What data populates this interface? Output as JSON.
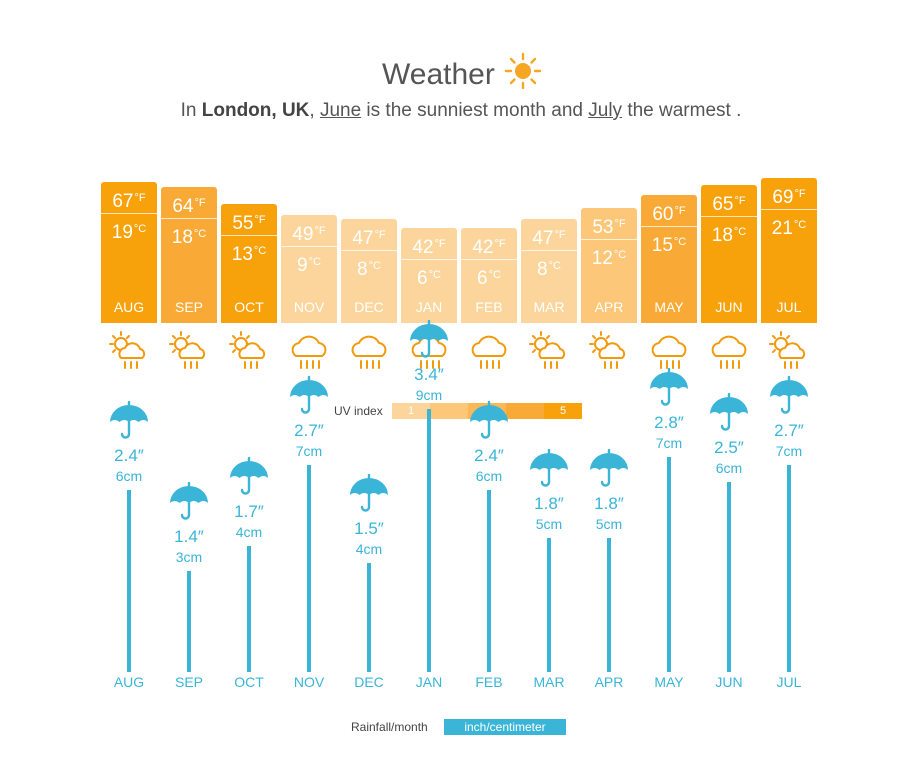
{
  "title": "Weather",
  "subtitle": {
    "prefix": "In ",
    "location": "London, UK",
    "comma": ", ",
    "sunniest_month": "June",
    "middle": " is the sunniest month and ",
    "warmest_month": "July",
    "suffix": " the warmest ."
  },
  "colors": {
    "temp_bar_levels": [
      "#fcd59c",
      "#fcc779",
      "#fbb855",
      "#f9a935",
      "#f7a10b"
    ],
    "uv_levels": [
      "#fcd59c",
      "#fcc779",
      "#fbb855",
      "#f9a935",
      "#f7a10b"
    ],
    "rain": "#3ab5d8",
    "icon": "#f29a0c",
    "sun_title": "#f5a623"
  },
  "uv": {
    "label": "UV index",
    "scale": [
      "1",
      "",
      "",
      "",
      "5"
    ]
  },
  "rain_legend": {
    "label": "Rainfall/month",
    "unit_badge": "inch/centimeter"
  },
  "chart_data": [
    {
      "type": "bar",
      "title": "",
      "categories": [
        "AUG",
        "SEP",
        "OCT",
        "NOV",
        "DEC",
        "JAN",
        "FEB",
        "MAR",
        "APR",
        "MAY",
        "JUN",
        "JUL"
      ],
      "series": [
        {
          "name": "°F",
          "values": [
            67,
            64,
            55,
            49,
            47,
            42,
            42,
            47,
            53,
            60,
            65,
            69
          ]
        },
        {
          "name": "°C",
          "values": [
            19,
            18,
            13,
            9,
            8,
            6,
            6,
            8,
            12,
            15,
            18,
            21
          ]
        }
      ],
      "uv_level": [
        5,
        4,
        5,
        1,
        1,
        1,
        1,
        1,
        2,
        4,
        5,
        5
      ],
      "weather_icon": [
        "sun-cloud-rain-icon",
        "sun-cloud-rain-icon",
        "sun-cloud-rain-icon",
        "cloud-rain-icon",
        "cloud-rain-icon",
        "cloud-rain-icon",
        "cloud-rain-icon",
        "sun-cloud-rain-icon",
        "sun-cloud-rain-icon",
        "cloud-rain-icon",
        "cloud-rain-icon",
        "sun-cloud-rain-icon"
      ],
      "units": {
        "f": "°F",
        "c": "°C"
      },
      "xlabel": "",
      "ylabel": "",
      "grid": false
    },
    {
      "type": "bar",
      "title": "",
      "categories": [
        "AUG",
        "SEP",
        "OCT",
        "NOV",
        "DEC",
        "JAN",
        "FEB",
        "MAR",
        "APR",
        "MAY",
        "JUN",
        "JUL"
      ],
      "series": [
        {
          "name": "inch",
          "values": [
            2.4,
            1.4,
            1.7,
            2.7,
            1.5,
            3.4,
            2.4,
            1.8,
            1.8,
            2.8,
            2.5,
            2.7
          ]
        },
        {
          "name": "cm",
          "values": [
            6,
            3,
            4,
            7,
            4,
            9,
            6,
            5,
            5,
            7,
            6,
            7
          ]
        }
      ],
      "units": {
        "inch": "″",
        "cm": "cm"
      },
      "xlabel": "",
      "ylabel": "",
      "grid": false
    }
  ]
}
